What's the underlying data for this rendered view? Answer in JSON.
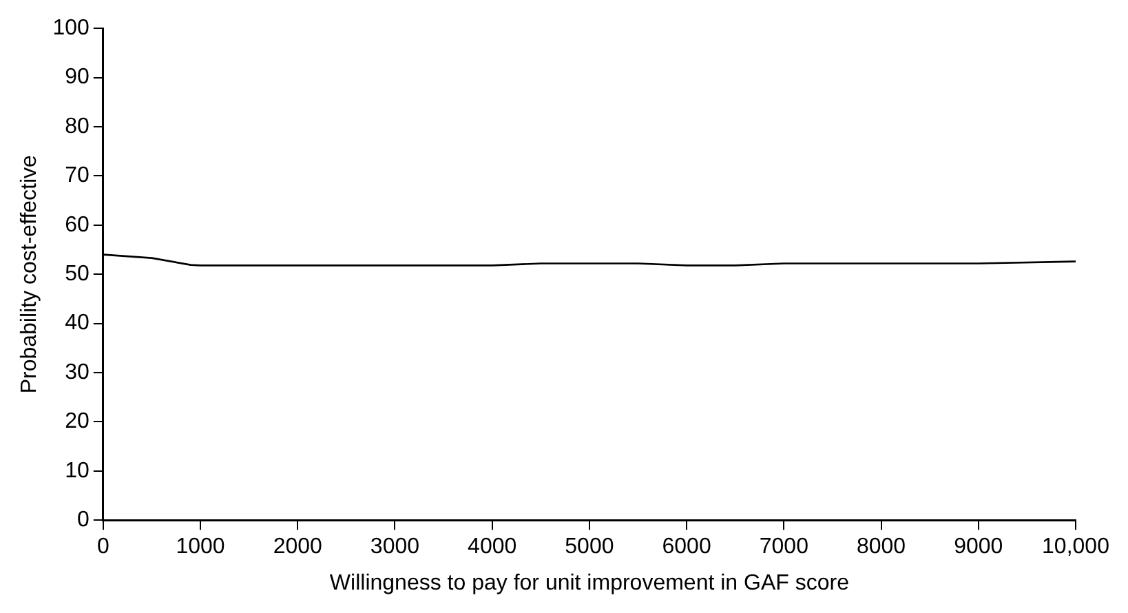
{
  "chart_data": {
    "type": "line",
    "xlabel": "Willingness to pay for unit improvement in GAF score",
    "ylabel": "Probability cost-effective",
    "x": [
      0,
      500,
      900,
      1000,
      2000,
      3000,
      4000,
      4500,
      5000,
      5500,
      6000,
      6500,
      7000,
      8000,
      9000,
      10000
    ],
    "series": [
      {
        "color": "#000000",
        "values": [
          54,
          53.3,
          51.9,
          51.8,
          51.8,
          51.8,
          51.8,
          52.2,
          52.2,
          52.2,
          51.8,
          51.8,
          52.2,
          52.2,
          52.2,
          52.6
        ]
      }
    ],
    "xlim": [
      0,
      10000
    ],
    "xticks": [
      0,
      1000,
      2000,
      3000,
      4000,
      5000,
      6000,
      7000,
      8000,
      9000,
      {
        "value": 10000,
        "label": "10,000"
      }
    ],
    "ylim": [
      0,
      100
    ],
    "yticks": [
      0,
      10,
      20,
      30,
      40,
      50,
      60,
      70,
      80,
      90,
      100
    ],
    "grid": false,
    "legend": false,
    "marker": "none",
    "line_style": "solid"
  }
}
